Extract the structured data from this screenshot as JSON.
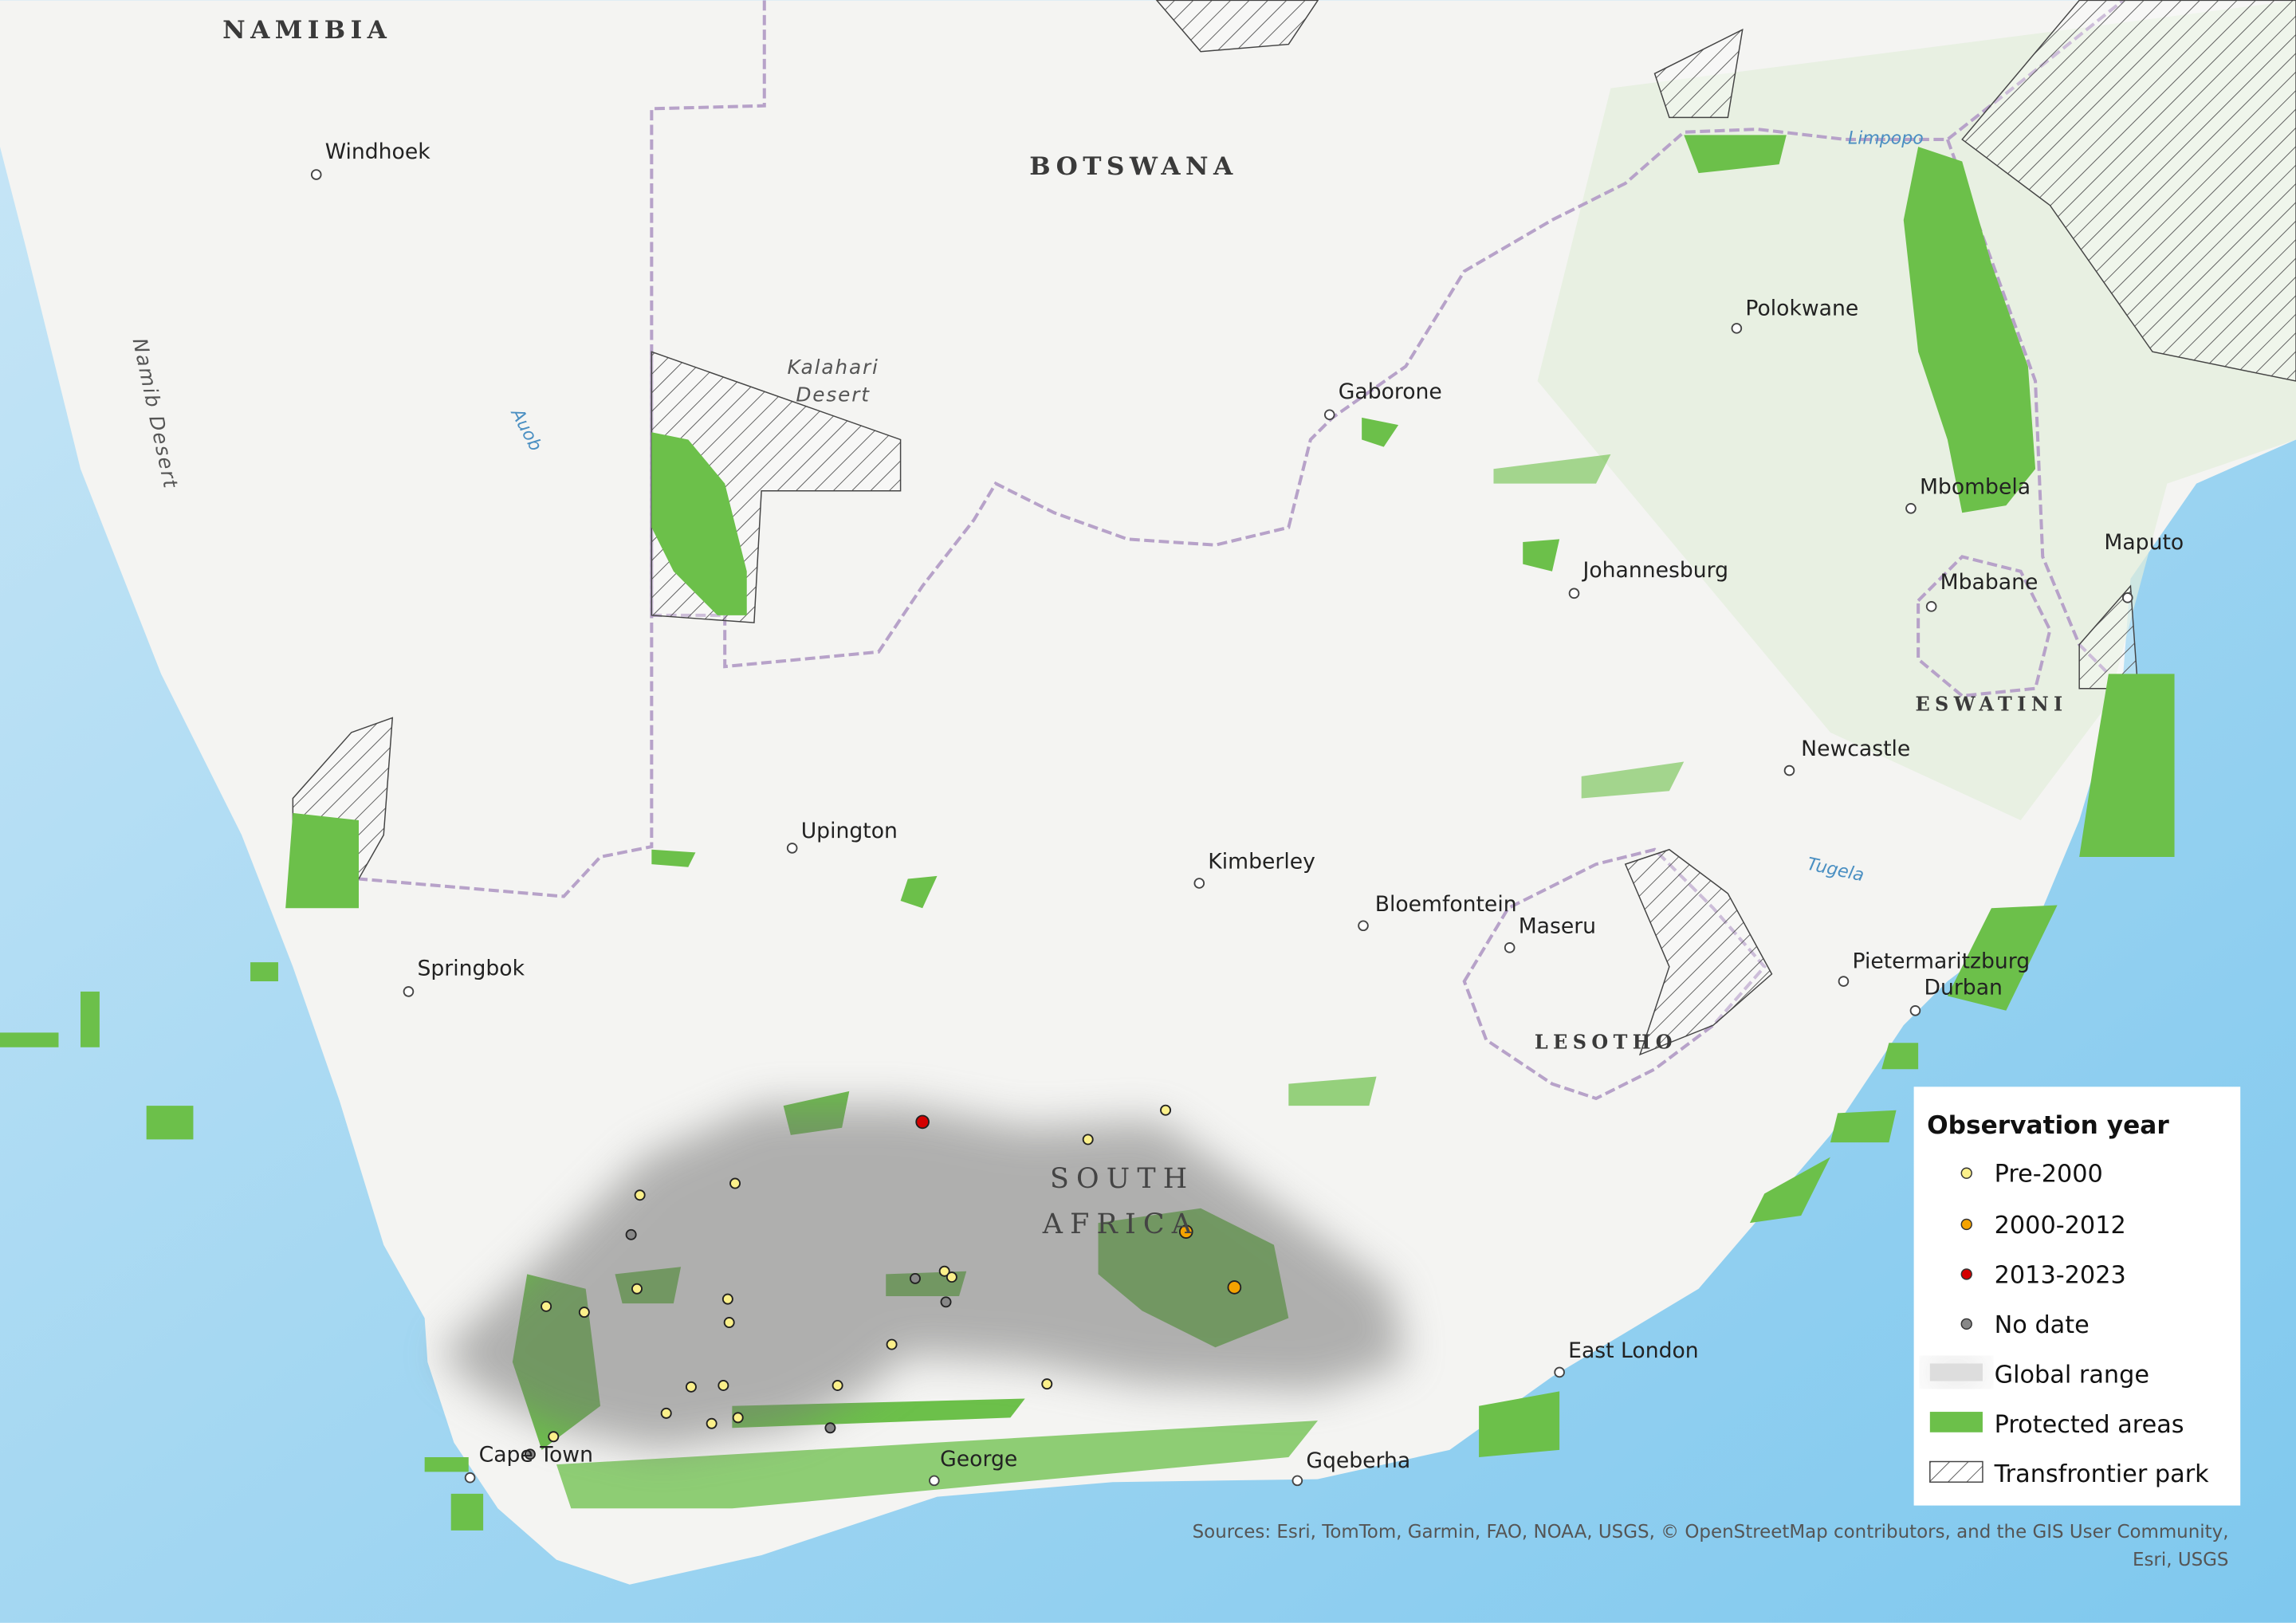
{
  "countries": {
    "namibia": "NAMIBIA",
    "botswana": "BOTSWANA",
    "south_africa": [
      "SOUTH",
      "AFRICA"
    ],
    "lesotho": "LESOTHO",
    "eswatini": "ESWATINI"
  },
  "cities": [
    "Windhoek",
    "Gaborone",
    "Polokwane",
    "Mbombela",
    "Maputo",
    "Mbabane",
    "Johannesburg",
    "Newcastle",
    "Upington",
    "Kimberley",
    "Bloemfontein",
    "Maseru",
    "Pietermaritzburg",
    "Durban",
    "Springbok",
    "East London",
    "Cape Town",
    "George",
    "Gqeberha"
  ],
  "rivers": [
    "Limpopo",
    "Auob",
    "Tugela"
  ],
  "deserts": {
    "namib": "Namib Desert",
    "kalahari": [
      "Kalahari",
      "Desert"
    ]
  },
  "legend": {
    "title": "Observation year",
    "items": [
      "Pre-2000",
      "2000-2012",
      "2013-2023",
      "No date",
      "Global range",
      "Protected areas",
      "Transfrontier park"
    ]
  },
  "sources": [
    "Sources: Esri, TomTom, Garmin, FAO, NOAA, USGS, © OpenStreetMap contributors, and the GIS User Community,",
    "Esri, USGS"
  ]
}
